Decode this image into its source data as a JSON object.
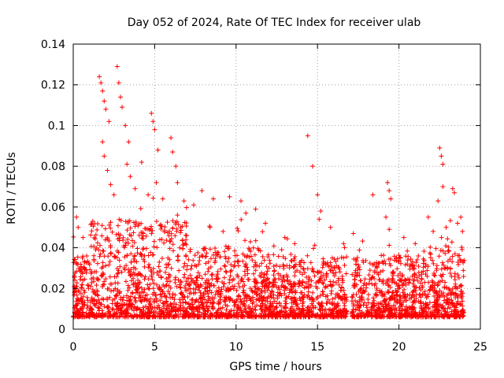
{
  "chart_data": {
    "type": "scatter",
    "title": "Day 052 of 2024, Rate Of TEC Index for receiver ulab",
    "xlabel": "GPS time / hours",
    "ylabel": "ROTI / TECUs",
    "xlim": [
      0,
      25
    ],
    "ylim": [
      0,
      0.14
    ],
    "xticks": [
      "0",
      "5",
      "10",
      "15",
      "20",
      "25"
    ],
    "yticks": [
      "0",
      "0.02",
      "0.04",
      "0.06",
      "0.08",
      "0.1",
      "0.12",
      "0.14"
    ],
    "grid": true,
    "marker": "plus",
    "color": "#ff0000",
    "data_gap_hours": [
      16.8,
      17.1
    ],
    "data_end_hour": 24.0,
    "series": [
      {
        "name": "ROTI",
        "points": [
          [
            1.6,
            0.124
          ],
          [
            1.7,
            0.121
          ],
          [
            1.8,
            0.117
          ],
          [
            1.9,
            0.112
          ],
          [
            2.0,
            0.108
          ],
          [
            2.2,
            0.102
          ],
          [
            2.7,
            0.129
          ],
          [
            2.8,
            0.121
          ],
          [
            2.9,
            0.114
          ],
          [
            3.0,
            0.109
          ],
          [
            3.2,
            0.1
          ],
          [
            3.4,
            0.092
          ],
          [
            4.8,
            0.106
          ],
          [
            4.9,
            0.102
          ],
          [
            5.0,
            0.098
          ],
          [
            5.2,
            0.088
          ],
          [
            6.0,
            0.094
          ],
          [
            6.1,
            0.087
          ],
          [
            6.3,
            0.08
          ],
          [
            1.8,
            0.092
          ],
          [
            1.9,
            0.085
          ],
          [
            2.1,
            0.078
          ],
          [
            2.3,
            0.071
          ],
          [
            2.5,
            0.066
          ],
          [
            3.3,
            0.081
          ],
          [
            3.5,
            0.075
          ],
          [
            3.8,
            0.069
          ],
          [
            4.2,
            0.082
          ],
          [
            4.6,
            0.066
          ],
          [
            5.1,
            0.072
          ],
          [
            5.5,
            0.064
          ],
          [
            6.4,
            0.072
          ],
          [
            6.8,
            0.063
          ],
          [
            7.4,
            0.061
          ],
          [
            7.9,
            0.068
          ],
          [
            8.6,
            0.064
          ],
          [
            9.6,
            0.065
          ],
          [
            10.3,
            0.063
          ],
          [
            10.6,
            0.057
          ],
          [
            11.2,
            0.059
          ],
          [
            11.8,
            0.052
          ],
          [
            14.4,
            0.095
          ],
          [
            14.7,
            0.08
          ],
          [
            15.0,
            0.066
          ],
          [
            15.2,
            0.058
          ],
          [
            15.1,
            0.054
          ],
          [
            15.8,
            0.05
          ],
          [
            16.6,
            0.042
          ],
          [
            17.2,
            0.047
          ],
          [
            18.4,
            0.066
          ],
          [
            19.3,
            0.072
          ],
          [
            19.4,
            0.068
          ],
          [
            19.5,
            0.064
          ],
          [
            19.2,
            0.055
          ],
          [
            19.4,
            0.049
          ],
          [
            21.8,
            0.055
          ],
          [
            22.1,
            0.048
          ],
          [
            22.5,
            0.089
          ],
          [
            22.6,
            0.085
          ],
          [
            22.7,
            0.081
          ],
          [
            22.7,
            0.07
          ],
          [
            22.4,
            0.063
          ],
          [
            23.3,
            0.069
          ],
          [
            23.4,
            0.067
          ],
          [
            23.8,
            0.055
          ],
          [
            23.9,
            0.048
          ],
          [
            0.2,
            0.055
          ],
          [
            0.3,
            0.05
          ],
          [
            0.6,
            0.045
          ],
          [
            1.2,
            0.053
          ],
          [
            8.4,
            0.05
          ],
          [
            9.2,
            0.048
          ],
          [
            12.8,
            0.039
          ],
          [
            13.6,
            0.042
          ],
          [
            20.3,
            0.045
          ],
          [
            21.0,
            0.042
          ],
          [
            22.9,
            0.05
          ],
          [
            23.6,
            0.052
          ]
        ]
      }
    ]
  }
}
